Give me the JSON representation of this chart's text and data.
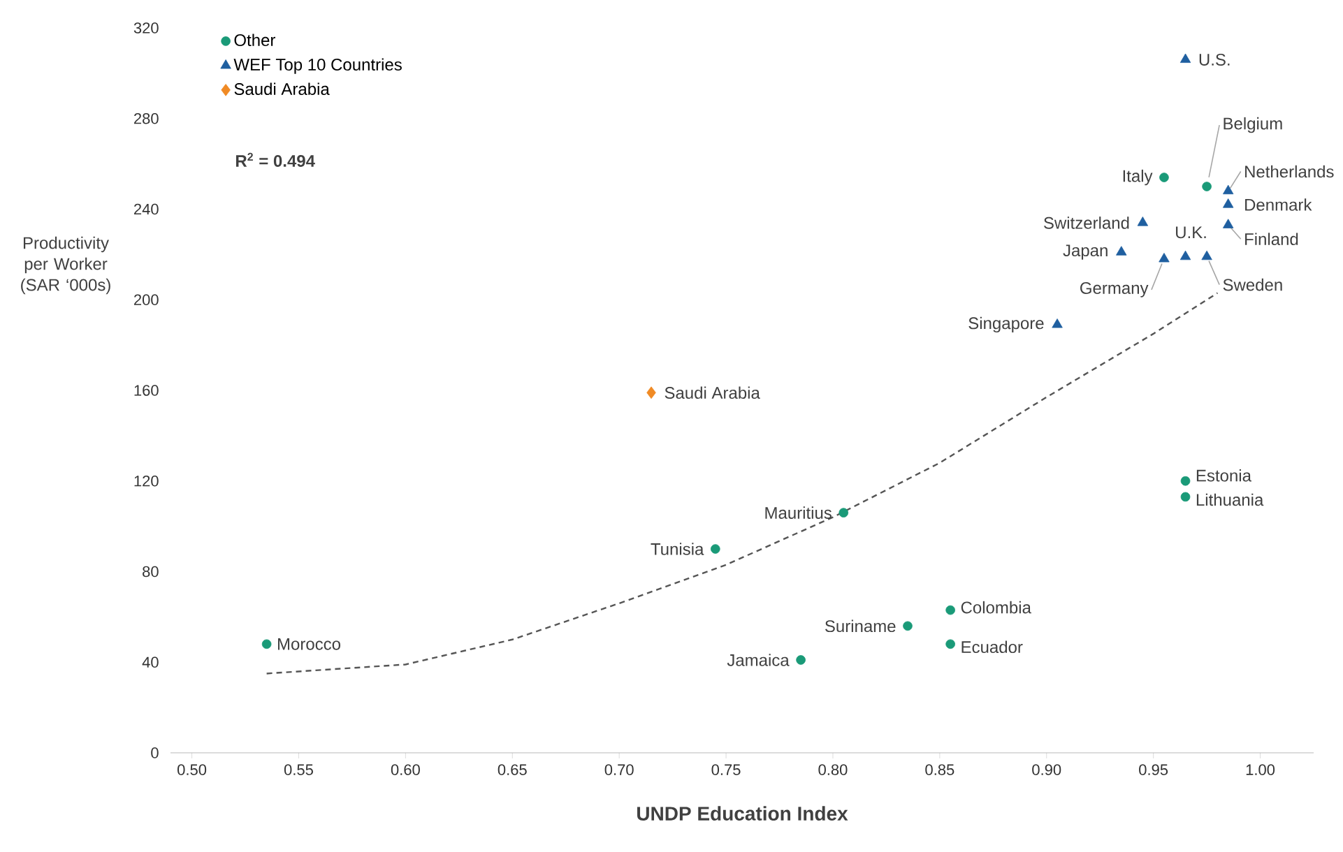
{
  "chart_data": {
    "type": "scatter",
    "xlabel": "UNDP Education Index",
    "ylabel": "Productivity per Worker (SAR ‘000s)",
    "xlim": [
      0.49,
      1.025
    ],
    "ylim": [
      0,
      320
    ],
    "xticks": [
      {
        "value": 0.5,
        "label": "0.50"
      },
      {
        "value": 0.55,
        "label": "0.55"
      },
      {
        "value": 0.6,
        "label": "0.60"
      },
      {
        "value": 0.65,
        "label": "0.65"
      },
      {
        "value": 0.7,
        "label": "0.70"
      },
      {
        "value": 0.75,
        "label": "0.75"
      },
      {
        "value": 0.8,
        "label": "0.80"
      },
      {
        "value": 0.85,
        "label": "0.85"
      },
      {
        "value": 0.9,
        "label": "0.90"
      },
      {
        "value": 0.95,
        "label": "0.95"
      },
      {
        "value": 1.0,
        "label": "1.00"
      }
    ],
    "yticks": [
      0,
      40,
      80,
      120,
      160,
      200,
      240,
      280,
      320
    ],
    "grid": false,
    "legend": "top left",
    "series": [
      {
        "name": "Other",
        "color": "#1a9a78",
        "marker": "circle",
        "x": [
          0.535,
          0.785,
          0.745,
          0.805,
          0.835,
          0.855,
          0.855,
          0.965,
          0.965,
          0.955,
          0.975
        ],
        "values": [
          48,
          41,
          90,
          106,
          56,
          63,
          48,
          120,
          113,
          254,
          250
        ]
      },
      {
        "name": "WEF Top 10 Countries",
        "color": "#1f5fa0",
        "marker": "triangle",
        "x": [
          0.965,
          0.985,
          0.985,
          0.985,
          0.945,
          0.935,
          0.965,
          0.955,
          0.975,
          0.905
        ],
        "values": [
          306,
          248,
          242,
          233,
          234,
          221,
          219,
          218,
          219,
          189
        ]
      },
      {
        "name": "Saudi Arabia",
        "color": "#f08a24",
        "marker": "diamond",
        "x": [
          0.715
        ],
        "values": [
          159
        ]
      },
      {
        "type": "line",
        "color": "#555555",
        "line_style": "dashed",
        "marker": "none",
        "x": [
          0.535,
          0.6,
          0.65,
          0.7,
          0.75,
          0.8,
          0.85,
          0.9,
          0.95,
          0.98
        ],
        "values": [
          35,
          39,
          50,
          66,
          83,
          104,
          128,
          157,
          185,
          203
        ]
      }
    ],
    "annotations": [
      {
        "text": "Morocco",
        "x": 0.535,
        "y": 48
      },
      {
        "text": "Jamaica",
        "x": 0.785,
        "y": 41
      },
      {
        "text": "Tunisia",
        "x": 0.745,
        "y": 90
      },
      {
        "text": "Mauritius",
        "x": 0.805,
        "y": 106
      },
      {
        "text": "Suriname",
        "x": 0.835,
        "y": 56
      },
      {
        "text": "Colombia",
        "x": 0.855,
        "y": 63
      },
      {
        "text": "Ecuador",
        "x": 0.855,
        "y": 48
      },
      {
        "text": "Estonia",
        "x": 0.965,
        "y": 120
      },
      {
        "text": "Lithuania",
        "x": 0.965,
        "y": 113
      },
      {
        "text": "Italy",
        "x": 0.955,
        "y": 254
      },
      {
        "text": "Belgium",
        "x": 0.975,
        "y": 250
      },
      {
        "text": "Saudi Arabia",
        "x": 0.715,
        "y": 159
      },
      {
        "text": "U.S.",
        "x": 0.965,
        "y": 306
      },
      {
        "text": "Netherlands",
        "x": 0.985,
        "y": 248
      },
      {
        "text": "Denmark",
        "x": 0.985,
        "y": 242
      },
      {
        "text": "Finland",
        "x": 0.985,
        "y": 233
      },
      {
        "text": "Switzerland",
        "x": 0.945,
        "y": 234
      },
      {
        "text": "Japan",
        "x": 0.935,
        "y": 221
      },
      {
        "text": "U.K.",
        "x": 0.965,
        "y": 219
      },
      {
        "text": "Germany",
        "x": 0.955,
        "y": 218
      },
      {
        "text": "Sweden",
        "x": 0.975,
        "y": 219
      },
      {
        "text": "Singapore",
        "x": 0.905,
        "y": 189
      },
      "**R$^{2}$ = 0.494**"
    ]
  }
}
